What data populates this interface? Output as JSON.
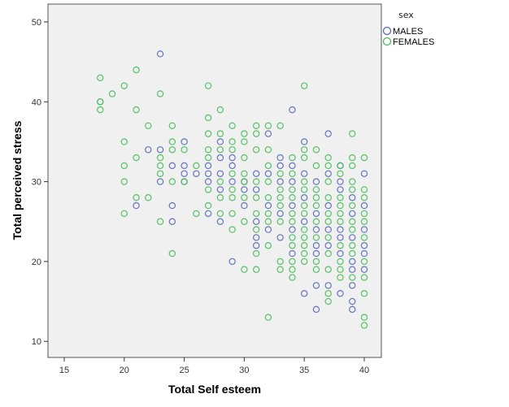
{
  "chart_data": {
    "type": "scatter",
    "title": "",
    "xlabel": "Total Self esteem",
    "ylabel": "Total perceived stress",
    "xlim": [
      14,
      41.5
    ],
    "ylim": [
      8,
      52.3
    ],
    "xticks": [
      15,
      20,
      25,
      30,
      35,
      40
    ],
    "yticks": [
      10,
      20,
      30,
      40,
      50
    ],
    "grid": false,
    "legend": {
      "title": "sex",
      "position": "right-top"
    },
    "series": [
      {
        "name": "MALES",
        "color": "#5566bb",
        "points": [
          [
            23,
            46
          ],
          [
            21,
            27
          ],
          [
            22,
            34
          ],
          [
            23,
            34
          ],
          [
            23,
            30
          ],
          [
            24,
            32
          ],
          [
            24,
            27
          ],
          [
            24,
            25
          ],
          [
            25,
            35
          ],
          [
            25,
            32
          ],
          [
            25,
            31
          ],
          [
            25,
            30
          ],
          [
            26,
            31
          ],
          [
            27,
            32
          ],
          [
            27,
            31
          ],
          [
            27,
            30
          ],
          [
            27,
            26
          ],
          [
            28,
            35
          ],
          [
            28,
            33
          ],
          [
            28,
            31
          ],
          [
            28,
            29
          ],
          [
            28,
            25
          ],
          [
            29,
            33
          ],
          [
            29,
            32
          ],
          [
            29,
            30
          ],
          [
            29,
            20
          ],
          [
            30,
            30
          ],
          [
            30,
            29
          ],
          [
            30,
            27
          ],
          [
            31,
            31
          ],
          [
            31,
            29
          ],
          [
            31,
            25
          ],
          [
            31,
            23
          ],
          [
            31,
            22
          ],
          [
            32,
            36
          ],
          [
            32,
            31
          ],
          [
            32,
            27
          ],
          [
            32,
            24
          ],
          [
            33,
            33
          ],
          [
            33,
            32
          ],
          [
            33,
            30
          ],
          [
            33,
            26
          ],
          [
            33,
            23
          ],
          [
            34,
            39
          ],
          [
            34,
            32
          ],
          [
            34,
            30
          ],
          [
            34,
            27
          ],
          [
            34,
            24
          ],
          [
            34,
            21
          ],
          [
            35,
            35
          ],
          [
            35,
            31
          ],
          [
            35,
            28
          ],
          [
            35,
            25
          ],
          [
            35,
            16
          ],
          [
            36,
            30
          ],
          [
            36,
            26
          ],
          [
            36,
            24
          ],
          [
            36,
            22
          ],
          [
            36,
            21
          ],
          [
            36,
            17
          ],
          [
            36,
            14
          ],
          [
            37,
            36
          ],
          [
            37,
            31
          ],
          [
            37,
            27
          ],
          [
            37,
            24
          ],
          [
            37,
            22
          ],
          [
            37,
            17
          ],
          [
            38,
            32
          ],
          [
            38,
            30
          ],
          [
            38,
            29
          ],
          [
            38,
            24
          ],
          [
            38,
            23
          ],
          [
            38,
            21
          ],
          [
            38,
            16
          ],
          [
            39,
            28
          ],
          [
            39,
            26
          ],
          [
            39,
            23
          ],
          [
            39,
            20
          ],
          [
            39,
            19
          ],
          [
            39,
            17
          ],
          [
            39,
            15
          ],
          [
            39,
            14
          ],
          [
            40,
            31
          ],
          [
            40,
            27
          ],
          [
            40,
            24
          ],
          [
            40,
            22
          ],
          [
            40,
            21
          ],
          [
            40,
            19
          ]
        ]
      },
      {
        "name": "FEMALES",
        "color": "#44bb55",
        "points": [
          [
            18,
            43
          ],
          [
            18,
            40
          ],
          [
            18,
            40
          ],
          [
            18,
            39
          ],
          [
            19,
            41
          ],
          [
            20,
            42
          ],
          [
            20,
            35
          ],
          [
            20,
            32
          ],
          [
            20,
            30
          ],
          [
            20,
            26
          ],
          [
            21,
            44
          ],
          [
            21,
            39
          ],
          [
            21,
            33
          ],
          [
            21,
            28
          ],
          [
            22,
            37
          ],
          [
            22,
            28
          ],
          [
            23,
            41
          ],
          [
            23,
            33
          ],
          [
            23,
            32
          ],
          [
            23,
            31
          ],
          [
            23,
            25
          ],
          [
            24,
            37
          ],
          [
            24,
            35
          ],
          [
            24,
            34
          ],
          [
            24,
            30
          ],
          [
            24,
            21
          ],
          [
            25,
            34
          ],
          [
            25,
            30
          ],
          [
            26,
            32
          ],
          [
            26,
            26
          ],
          [
            27,
            42
          ],
          [
            27,
            38
          ],
          [
            27,
            36
          ],
          [
            27,
            34
          ],
          [
            27,
            33
          ],
          [
            27,
            29
          ],
          [
            27,
            27
          ],
          [
            28,
            39
          ],
          [
            28,
            36
          ],
          [
            28,
            34
          ],
          [
            28,
            30
          ],
          [
            28,
            28
          ],
          [
            28,
            26
          ],
          [
            29,
            37
          ],
          [
            29,
            35
          ],
          [
            29,
            34
          ],
          [
            29,
            31
          ],
          [
            29,
            29
          ],
          [
            29,
            28
          ],
          [
            29,
            26
          ],
          [
            29,
            24
          ],
          [
            30,
            36
          ],
          [
            30,
            35
          ],
          [
            30,
            33
          ],
          [
            30,
            31
          ],
          [
            30,
            30
          ],
          [
            30,
            28
          ],
          [
            30,
            25
          ],
          [
            30,
            19
          ],
          [
            31,
            37
          ],
          [
            31,
            36
          ],
          [
            31,
            34
          ],
          [
            31,
            30
          ],
          [
            31,
            28
          ],
          [
            31,
            26
          ],
          [
            31,
            24
          ],
          [
            31,
            21
          ],
          [
            31,
            19
          ],
          [
            32,
            37
          ],
          [
            32,
            34
          ],
          [
            32,
            32
          ],
          [
            32,
            30
          ],
          [
            32,
            28
          ],
          [
            32,
            26
          ],
          [
            32,
            25
          ],
          [
            32,
            22
          ],
          [
            32,
            13
          ],
          [
            33,
            37
          ],
          [
            33,
            31
          ],
          [
            33,
            29
          ],
          [
            33,
            28
          ],
          [
            33,
            27
          ],
          [
            33,
            25
          ],
          [
            33,
            20
          ],
          [
            33,
            19
          ],
          [
            34,
            33
          ],
          [
            34,
            31
          ],
          [
            34,
            29
          ],
          [
            34,
            28
          ],
          [
            34,
            26
          ],
          [
            34,
            25
          ],
          [
            34,
            23
          ],
          [
            34,
            22
          ],
          [
            34,
            20
          ],
          [
            34,
            19
          ],
          [
            34,
            18
          ],
          [
            35,
            42
          ],
          [
            35,
            34
          ],
          [
            35,
            33
          ],
          [
            35,
            30
          ],
          [
            35,
            29
          ],
          [
            35,
            27
          ],
          [
            35,
            26
          ],
          [
            35,
            24
          ],
          [
            35,
            23
          ],
          [
            35,
            22
          ],
          [
            35,
            21
          ],
          [
            35,
            20
          ],
          [
            36,
            34
          ],
          [
            36,
            32
          ],
          [
            36,
            29
          ],
          [
            36,
            28
          ],
          [
            36,
            27
          ],
          [
            36,
            25
          ],
          [
            36,
            23
          ],
          [
            36,
            20
          ],
          [
            36,
            19
          ],
          [
            37,
            33
          ],
          [
            37,
            32
          ],
          [
            37,
            30
          ],
          [
            37,
            28
          ],
          [
            37,
            26
          ],
          [
            37,
            25
          ],
          [
            37,
            23
          ],
          [
            37,
            21
          ],
          [
            37,
            19
          ],
          [
            37,
            16
          ],
          [
            37,
            15
          ],
          [
            38,
            32
          ],
          [
            38,
            31
          ],
          [
            38,
            28
          ],
          [
            38,
            27
          ],
          [
            38,
            26
          ],
          [
            38,
            25
          ],
          [
            38,
            22
          ],
          [
            38,
            20
          ],
          [
            38,
            19
          ],
          [
            38,
            18
          ],
          [
            39,
            36
          ],
          [
            39,
            33
          ],
          [
            39,
            32
          ],
          [
            39,
            30
          ],
          [
            39,
            29
          ],
          [
            39,
            27
          ],
          [
            39,
            25
          ],
          [
            39,
            24
          ],
          [
            39,
            22
          ],
          [
            39,
            21
          ],
          [
            39,
            18
          ],
          [
            40,
            33
          ],
          [
            40,
            29
          ],
          [
            40,
            28
          ],
          [
            40,
            26
          ],
          [
            40,
            25
          ],
          [
            40,
            23
          ],
          [
            40,
            20
          ],
          [
            40,
            18
          ],
          [
            40,
            16
          ],
          [
            40,
            13
          ],
          [
            40,
            12
          ]
        ]
      }
    ]
  }
}
